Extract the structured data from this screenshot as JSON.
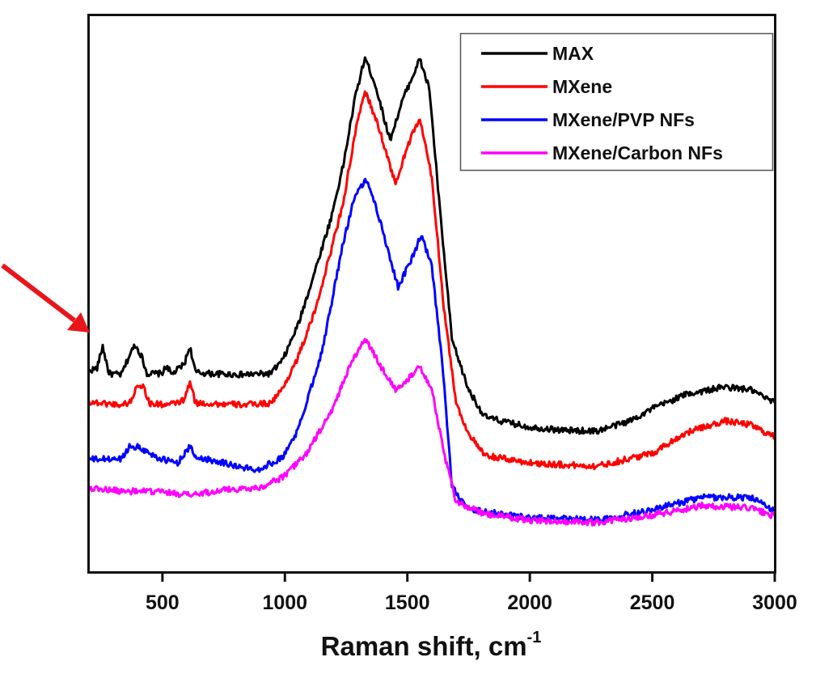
{
  "chart_data": {
    "type": "line",
    "title": "",
    "xlabel": "Raman shift, cm",
    "xlabel_superscript": "-1",
    "ylabel": "",
    "xlim": [
      200,
      3000
    ],
    "ylim": [
      0,
      100
    ],
    "x_ticks": [
      500,
      1000,
      1500,
      2000,
      2500,
      3000
    ],
    "x_tick_labels": [
      "500",
      "1000",
      "1500",
      "2000",
      "2500",
      "3000"
    ],
    "y_ticks": [],
    "grid": false,
    "legend_position": "top-right",
    "annotation": {
      "type": "arrow",
      "color": "#e8161b",
      "points_to": "MAX spectrum at low wavenumber"
    },
    "series": [
      {
        "name": "MAX",
        "color": "#000000",
        "x": [
          200,
          233,
          256,
          282,
          332,
          365,
          388,
          414,
          437,
          496,
          520,
          536,
          589,
          612,
          635,
          694,
          826,
          941,
          991,
          1056,
          1122,
          1188,
          1238,
          1287,
          1327,
          1369,
          1429,
          1485,
          1551,
          1590,
          1633,
          1682,
          1748,
          1814,
          1880,
          1999,
          2143,
          2275,
          2407,
          2499,
          2638,
          2796,
          2901,
          3000
        ],
        "y": [
          36.1,
          36.6,
          40.5,
          35.6,
          35.4,
          38.8,
          40.8,
          38.8,
          35.6,
          35.6,
          37.0,
          35.4,
          37.3,
          40.5,
          35.8,
          35.6,
          35.4,
          35.6,
          38.0,
          44.6,
          53.9,
          63.4,
          72.9,
          85.2,
          92.3,
          87.4,
          77.5,
          85.2,
          92.0,
          86.6,
          64.9,
          41.7,
          32.9,
          27.9,
          27.1,
          26.0,
          25.4,
          25.3,
          27.1,
          29.3,
          31.9,
          33.2,
          32.7,
          30.3
        ]
      },
      {
        "name": "MXene",
        "color": "#ff0000",
        "x": [
          200,
          332,
          371,
          398,
          424,
          447,
          529,
          589,
          612,
          635,
          826,
          941,
          991,
          1056,
          1122,
          1188,
          1238,
          1287,
          1327,
          1386,
          1452,
          1501,
          1551,
          1600,
          1649,
          1699,
          1748,
          1814,
          1999,
          2143,
          2275,
          2499,
          2638,
          2796,
          2901,
          3000
        ],
        "y": [
          30.5,
          30.0,
          30.5,
          33.7,
          33.2,
          30.2,
          30.0,
          30.8,
          34.1,
          30.3,
          30.0,
          30.3,
          32.9,
          38.8,
          46.7,
          57.6,
          66.3,
          78.7,
          86.4,
          79.4,
          69.5,
          76.5,
          81.4,
          70.7,
          47.5,
          30.3,
          25.0,
          20.9,
          19.6,
          19.2,
          19.0,
          21.3,
          25.0,
          27.1,
          26.4,
          24.2
        ]
      },
      {
        "name": "MXene/PVP NFs",
        "color": "#0000ff",
        "x": [
          200,
          332,
          365,
          398,
          496,
          562,
          612,
          635,
          727,
          826,
          892,
          991,
          1056,
          1155,
          1238,
          1287,
          1336,
          1386,
          1462,
          1518,
          1557,
          1600,
          1643,
          1682,
          1748,
          1999,
          2275,
          2499,
          2703,
          2901,
          3000
        ],
        "y": [
          20.2,
          20.3,
          22.5,
          22.5,
          20.2,
          19.6,
          22.5,
          20.6,
          19.9,
          18.7,
          18.4,
          20.6,
          25.7,
          40.2,
          59.1,
          67.8,
          70.4,
          63.4,
          51.1,
          56.2,
          60.5,
          54.7,
          37.3,
          15.5,
          11.2,
          9.7,
          9.4,
          11.2,
          13.4,
          13.4,
          10.9
        ]
      },
      {
        "name": "MXene/Carbon NFs",
        "color": "#ff00ff",
        "x": [
          200,
          332,
          496,
          612,
          760,
          892,
          991,
          1089,
          1188,
          1254,
          1303,
          1330,
          1386,
          1452,
          1501,
          1547,
          1600,
          1649,
          1699,
          1814,
          1999,
          2275,
          2499,
          2703,
          2901,
          3000
        ],
        "y": [
          15.1,
          14.5,
          14.4,
          13.8,
          14.8,
          15.1,
          17.0,
          21.3,
          28.6,
          35.8,
          40.2,
          41.7,
          37.3,
          32.7,
          34.4,
          37.2,
          32.9,
          21.3,
          12.6,
          10.4,
          9.3,
          8.9,
          10.2,
          11.9,
          11.5,
          10.0
        ]
      }
    ]
  }
}
